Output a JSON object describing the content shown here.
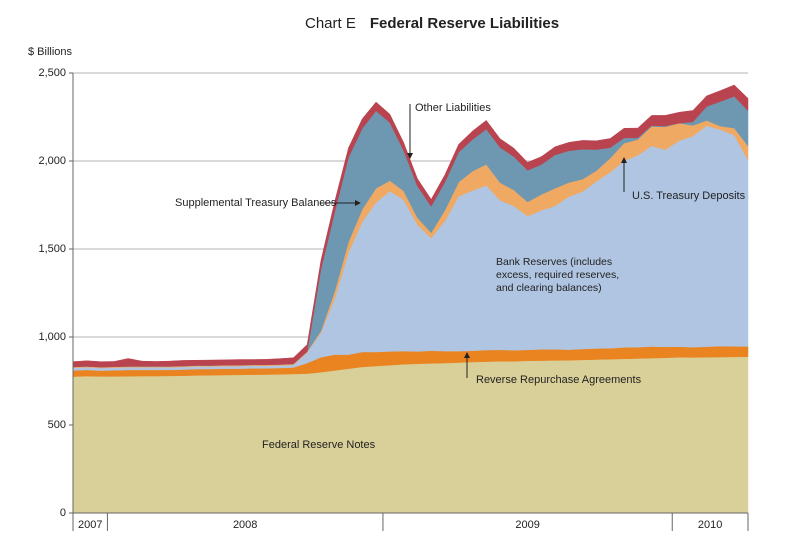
{
  "chart_data": {
    "type": "stacked_area",
    "title_prefix": "Chart E",
    "title": "Federal Reserve Liabilities",
    "y_label": "$ Billions",
    "ylim": [
      0,
      2500
    ],
    "yticks": [
      0,
      500,
      {
        "value": 1000,
        "label": "1,000"
      },
      {
        "value": 1500,
        "label": "1,500"
      },
      {
        "value": 2000,
        "label": "2,000"
      },
      {
        "value": 2500,
        "label": "2,500"
      }
    ],
    "grid": true,
    "categories": [
      "2007",
      "2007",
      "2007",
      "2008",
      "2008",
      "2008",
      "2008",
      "2008",
      "2008",
      "2008",
      "2008",
      "2008",
      "2008",
      "2008",
      "2008",
      "2008",
      "2008",
      "2008",
      "2008",
      "2008",
      "2008",
      "2008",
      "2008",
      "2009",
      "2009",
      "2009",
      "2009",
      "2009",
      "2009",
      "2009",
      "2009",
      "2009",
      "2009",
      "2009",
      "2009",
      "2009",
      "2009",
      "2009",
      "2009",
      "2009",
      "2009",
      "2009",
      "2009",
      "2009",
      "2010",
      "2010",
      "2010",
      "2010",
      "2010",
      "2010"
    ],
    "series": [
      {
        "name": "Federal Reserve Notes",
        "color": "#d9cf98",
        "values": [
          775,
          778,
          776,
          776,
          777,
          778,
          778,
          779,
          780,
          782,
          783,
          784,
          785,
          786,
          787,
          788,
          790,
          792,
          800,
          810,
          820,
          830,
          835,
          840,
          845,
          848,
          850,
          852,
          855,
          858,
          860,
          862,
          862,
          865,
          866,
          867,
          868,
          870,
          872,
          874,
          876,
          878,
          880,
          882,
          885,
          884,
          885,
          886,
          887,
          888
        ]
      },
      {
        "name": "Reverse Repurchase Agreements",
        "color": "#ea8420",
        "values": [
          35,
          35,
          33,
          35,
          36,
          35,
          35,
          34,
          35,
          36,
          35,
          36,
          35,
          36,
          35,
          36,
          37,
          60,
          85,
          90,
          80,
          85,
          80,
          78,
          75,
          70,
          72,
          68,
          65,
          64,
          66,
          65,
          63,
          62,
          64,
          63,
          60,
          62,
          63,
          62,
          65,
          64,
          66,
          62,
          60,
          58,
          60,
          62,
          60,
          58
        ]
      },
      {
        "name": "Bank Reserves (includes excess, required reserves, and clearing balances)",
        "color": "#afc5e1",
        "values": [
          15,
          15,
          15,
          15,
          15,
          15,
          15,
          15,
          15,
          15,
          15,
          15,
          15,
          15,
          15,
          15,
          15,
          60,
          140,
          320,
          580,
          740,
          850,
          910,
          860,
          720,
          640,
          740,
          880,
          910,
          935,
          850,
          820,
          760,
          790,
          815,
          870,
          895,
          950,
          1000,
          1060,
          1090,
          1140,
          1120,
          1170,
          1200,
          1255,
          1230,
          1200,
          1060
        ]
      },
      {
        "name": "U.S. Treasury Deposits",
        "color": "#f0a962",
        "values": [
          5,
          5,
          5,
          5,
          5,
          5,
          5,
          5,
          5,
          5,
          5,
          5,
          5,
          5,
          5,
          5,
          5,
          5,
          10,
          40,
          60,
          70,
          80,
          60,
          50,
          40,
          30,
          60,
          80,
          110,
          120,
          100,
          90,
          80,
          90,
          100,
          80,
          70,
          60,
          80,
          100,
          90,
          110,
          130,
          100,
          60,
          30,
          20,
          40,
          80
        ]
      },
      {
        "name": "Supplemental Treasury Balances",
        "color": "#6e98b1",
        "values": [
          0,
          0,
          0,
          0,
          0,
          0,
          0,
          0,
          0,
          0,
          0,
          0,
          0,
          0,
          0,
          0,
          0,
          0,
          350,
          450,
          480,
          460,
          440,
          330,
          230,
          180,
          150,
          160,
          170,
          180,
          200,
          200,
          190,
          180,
          170,
          190,
          180,
          170,
          120,
          60,
          30,
          10,
          5,
          5,
          0,
          20,
          80,
          140,
          180,
          200
        ]
      },
      {
        "name": "Other Liabilities",
        "color": "#b9434f",
        "values": [
          30,
          32,
          31,
          30,
          45,
          30,
          28,
          30,
          32,
          30,
          31,
          30,
          32,
          30,
          31,
          33,
          35,
          40,
          50,
          60,
          55,
          55,
          50,
          48,
          45,
          42,
          40,
          42,
          45,
          48,
          50,
          50,
          48,
          45,
          45,
          46,
          48,
          50,
          50,
          52,
          55,
          55,
          58,
          60,
          62,
          65,
          60,
          62,
          65,
          70
        ]
      }
    ]
  }
}
